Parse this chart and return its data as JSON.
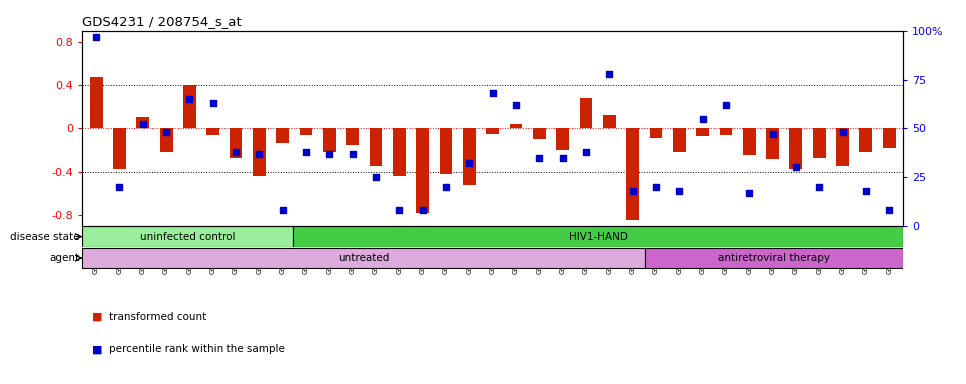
{
  "title": "GDS4231 / 208754_s_at",
  "samples": [
    "GSM697483",
    "GSM697484",
    "GSM697485",
    "GSM697486",
    "GSM697487",
    "GSM697488",
    "GSM697489",
    "GSM697490",
    "GSM697491",
    "GSM697492",
    "GSM697493",
    "GSM697494",
    "GSM697495",
    "GSM697496",
    "GSM697497",
    "GSM697498",
    "GSM697499",
    "GSM697500",
    "GSM697501",
    "GSM697502",
    "GSM697503",
    "GSM697504",
    "GSM697505",
    "GSM697506",
    "GSM697507",
    "GSM697508",
    "GSM697509",
    "GSM697510",
    "GSM697511",
    "GSM697512",
    "GSM697513",
    "GSM697514",
    "GSM697515",
    "GSM697516",
    "GSM697517"
  ],
  "bar_values": [
    0.47,
    -0.38,
    0.1,
    -0.22,
    0.4,
    -0.06,
    -0.27,
    -0.44,
    -0.14,
    -0.06,
    -0.22,
    -0.15,
    -0.35,
    -0.44,
    -0.78,
    -0.42,
    -0.52,
    -0.05,
    0.04,
    -0.1,
    -0.2,
    0.28,
    0.12,
    -0.85,
    -0.09,
    -0.22,
    -0.07,
    -0.06,
    -0.25,
    -0.28,
    -0.38,
    -0.27,
    -0.35,
    -0.22,
    -0.18
  ],
  "dot_values_pct": [
    97,
    20,
    52,
    48,
    65,
    63,
    38,
    37,
    8,
    38,
    37,
    37,
    25,
    8,
    8,
    20,
    32,
    68,
    62,
    35,
    35,
    38,
    78,
    18,
    20,
    18,
    55,
    62,
    17,
    47,
    30,
    20,
    48,
    18,
    8
  ],
  "ylim": [
    -0.9,
    0.9
  ],
  "yticks_left": [
    -0.8,
    -0.4,
    0.0,
    0.4,
    0.8
  ],
  "yticks_right": [
    0,
    25,
    50,
    75,
    100
  ],
  "hlines_black": [
    -0.4,
    0.4
  ],
  "hline_red": 0.0,
  "bar_color": "#cc2200",
  "dot_color": "#0000cc",
  "bar_width": 0.55,
  "disease_state_groups": [
    {
      "label": "uninfected control",
      "start": 0,
      "end": 9,
      "color": "#99ee99"
    },
    {
      "label": "HIV1-HAND",
      "start": 9,
      "end": 35,
      "color": "#44cc44"
    }
  ],
  "agent_groups": [
    {
      "label": "untreated",
      "start": 0,
      "end": 24,
      "color": "#ddaadd"
    },
    {
      "label": "antiretroviral therapy",
      "start": 24,
      "end": 35,
      "color": "#cc66cc"
    }
  ],
  "legend_items": [
    {
      "label": "transformed count",
      "color": "#cc2200",
      "marker": "s"
    },
    {
      "label": "percentile rank within the sample",
      "color": "#0000cc",
      "marker": "s"
    }
  ],
  "disease_state_label": "disease state",
  "agent_label": "agent",
  "bg_color": "#f0f0f0"
}
